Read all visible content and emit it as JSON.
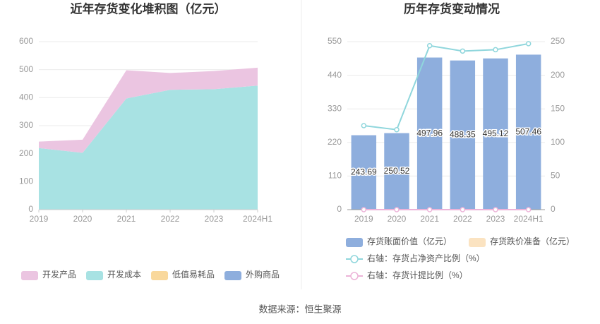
{
  "chart_data": [
    {
      "type": "area",
      "title": "近年存货变化堆积图（亿元）",
      "categories": [
        "2019",
        "2020",
        "2021",
        "2022",
        "2023",
        "2024H1"
      ],
      "series": [
        {
          "name": "开发产品",
          "color": "#ebc5e1",
          "values": [
            23,
            47,
            101,
            60,
            65,
            64
          ]
        },
        {
          "name": "开发成本",
          "color": "#a8e2e3",
          "values": [
            220,
            203,
            397,
            428,
            430,
            443
          ]
        },
        {
          "name": "低值易耗品",
          "color": "#f9d89c",
          "values": [
            0,
            0,
            0,
            0,
            0,
            0
          ]
        },
        {
          "name": "外购商品",
          "color": "#8eaedd",
          "values": [
            0,
            0,
            0,
            0,
            0,
            0
          ]
        }
      ],
      "ylim": [
        0,
        600
      ],
      "yticks": [
        0,
        100,
        200,
        300,
        400,
        500,
        600
      ],
      "grid": true
    },
    {
      "type": "bar",
      "title": "历年存货变动情况",
      "categories": [
        "2019",
        "2020",
        "2021",
        "2022",
        "2023",
        "2024H1"
      ],
      "series": [
        {
          "name": "存货账面价值（亿元）",
          "type": "bar",
          "color": "#8eaedd",
          "values": [
            243.69,
            250.52,
            497.96,
            488.35,
            495.12,
            507.46
          ]
        },
        {
          "name": "存货跌价准备（亿元）",
          "type": "bar",
          "color": "#fbe3c1",
          "values": [
            0,
            0,
            0,
            0,
            0,
            0
          ]
        },
        {
          "name": "右轴：存货占净资产比例（%）",
          "type": "line",
          "axis": "y2",
          "color": "#8fd6dc",
          "values": [
            125,
            119,
            244,
            236,
            238,
            247
          ]
        },
        {
          "name": "右轴：存货计提比例（%）",
          "type": "line",
          "axis": "y2",
          "color": "#ecb3d8",
          "values": [
            0,
            0,
            0,
            0,
            0,
            0
          ]
        }
      ],
      "ylim": [
        0,
        550
      ],
      "yticks": [
        0,
        110,
        220,
        330,
        440,
        550
      ],
      "y2lim": [
        0,
        250
      ],
      "y2ticks": [
        0,
        50,
        100,
        150,
        200,
        250
      ],
      "grid": true
    }
  ],
  "source": "数据来源：恒生聚源"
}
